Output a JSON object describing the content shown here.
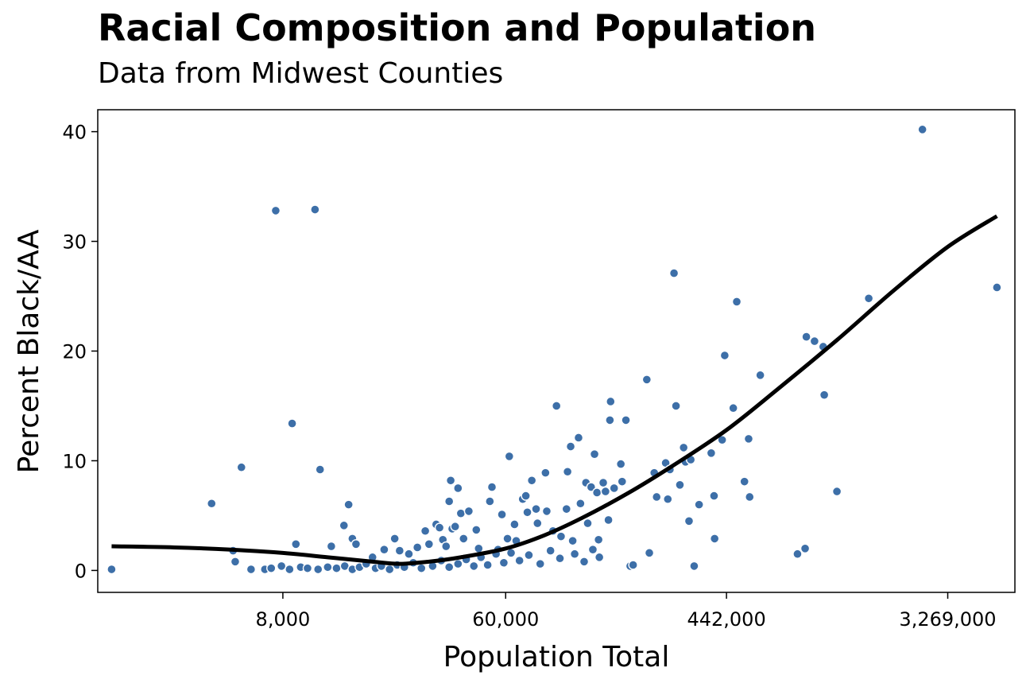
{
  "chart_data": {
    "type": "scatter",
    "title": "Racial Composition and Population",
    "subtitle": "Data from Midwest Counties",
    "xlabel": "Population Total",
    "ylabel": "Percent Black/AA",
    "x_scale": "log",
    "xlim": [
      1500,
      6000000
    ],
    "ylim": [
      -2,
      42
    ],
    "x_ticks": [
      {
        "value": 8000,
        "label": "8,000"
      },
      {
        "value": 60000,
        "label": "60,000"
      },
      {
        "value": 442000,
        "label": "442,000"
      },
      {
        "value": 3269000,
        "label": "3,269,000"
      }
    ],
    "y_ticks": [
      {
        "value": 0,
        "label": "0"
      },
      {
        "value": 10,
        "label": "10"
      },
      {
        "value": 20,
        "label": "20"
      },
      {
        "value": 30,
        "label": "30"
      },
      {
        "value": 40,
        "label": "40"
      }
    ],
    "point_color": "#3D6FA8",
    "line_color": "#000000",
    "points": [
      {
        "x": 1700,
        "y": 0.1
      },
      {
        "x": 4200,
        "y": 6.1
      },
      {
        "x": 5100,
        "y": 1.8
      },
      {
        "x": 5200,
        "y": 0.8
      },
      {
        "x": 5500,
        "y": 9.4
      },
      {
        "x": 7500,
        "y": 32.8
      },
      {
        "x": 8700,
        "y": 13.4
      },
      {
        "x": 9000,
        "y": 2.4
      },
      {
        "x": 10700,
        "y": 32.9
      },
      {
        "x": 11200,
        "y": 9.2
      },
      {
        "x": 12400,
        "y": 2.2
      },
      {
        "x": 13900,
        "y": 4.1
      },
      {
        "x": 14500,
        "y": 6.0
      },
      {
        "x": 15000,
        "y": 2.9
      },
      {
        "x": 15500,
        "y": 2.4
      },
      {
        "x": 18000,
        "y": 1.2
      },
      {
        "x": 20000,
        "y": 1.9
      },
      {
        "x": 22000,
        "y": 2.9
      },
      {
        "x": 23000,
        "y": 1.8
      },
      {
        "x": 25000,
        "y": 1.5
      },
      {
        "x": 27000,
        "y": 2.1
      },
      {
        "x": 29000,
        "y": 3.6
      },
      {
        "x": 30000,
        "y": 2.4
      },
      {
        "x": 32000,
        "y": 4.2
      },
      {
        "x": 33000,
        "y": 3.9
      },
      {
        "x": 34000,
        "y": 2.8
      },
      {
        "x": 35000,
        "y": 2.2
      },
      {
        "x": 36000,
        "y": 6.3
      },
      {
        "x": 36500,
        "y": 8.2
      },
      {
        "x": 37000,
        "y": 3.8
      },
      {
        "x": 38000,
        "y": 4.0
      },
      {
        "x": 39000,
        "y": 7.5
      },
      {
        "x": 40000,
        "y": 5.2
      },
      {
        "x": 41000,
        "y": 2.9
      },
      {
        "x": 43000,
        "y": 5.4
      },
      {
        "x": 46000,
        "y": 3.7
      },
      {
        "x": 47000,
        "y": 2.0
      },
      {
        "x": 52000,
        "y": 6.3
      },
      {
        "x": 53000,
        "y": 7.6
      },
      {
        "x": 56000,
        "y": 1.9
      },
      {
        "x": 58000,
        "y": 5.1
      },
      {
        "x": 61000,
        "y": 2.9
      },
      {
        "x": 62000,
        "y": 10.4
      },
      {
        "x": 65000,
        "y": 4.2
      },
      {
        "x": 66000,
        "y": 2.7
      },
      {
        "x": 70000,
        "y": 6.5
      },
      {
        "x": 72000,
        "y": 6.8
      },
      {
        "x": 73000,
        "y": 5.3
      },
      {
        "x": 76000,
        "y": 8.2
      },
      {
        "x": 79000,
        "y": 5.6
      },
      {
        "x": 80000,
        "y": 4.3
      },
      {
        "x": 86000,
        "y": 8.9
      },
      {
        "x": 87000,
        "y": 5.4
      },
      {
        "x": 92000,
        "y": 3.6
      },
      {
        "x": 95000,
        "y": 15.0
      },
      {
        "x": 99000,
        "y": 3.1
      },
      {
        "x": 104000,
        "y": 5.6
      },
      {
        "x": 105000,
        "y": 9.0
      },
      {
        "x": 108000,
        "y": 11.3
      },
      {
        "x": 110000,
        "y": 2.7
      },
      {
        "x": 116000,
        "y": 12.1
      },
      {
        "x": 118000,
        "y": 6.1
      },
      {
        "x": 124000,
        "y": 8.0
      },
      {
        "x": 126000,
        "y": 4.3
      },
      {
        "x": 130000,
        "y": 7.6
      },
      {
        "x": 134000,
        "y": 10.6
      },
      {
        "x": 137000,
        "y": 7.1
      },
      {
        "x": 139000,
        "y": 2.8
      },
      {
        "x": 145000,
        "y": 8.0
      },
      {
        "x": 148000,
        "y": 7.2
      },
      {
        "x": 152000,
        "y": 4.6
      },
      {
        "x": 154000,
        "y": 13.7
      },
      {
        "x": 155000,
        "y": 15.4
      },
      {
        "x": 160000,
        "y": 7.5
      },
      {
        "x": 170000,
        "y": 9.7
      },
      {
        "x": 172000,
        "y": 8.1
      },
      {
        "x": 178000,
        "y": 13.7
      },
      {
        "x": 185000,
        "y": 0.4
      },
      {
        "x": 190000,
        "y": 0.5
      },
      {
        "x": 215000,
        "y": 17.4
      },
      {
        "x": 220000,
        "y": 1.6
      },
      {
        "x": 230000,
        "y": 8.9
      },
      {
        "x": 235000,
        "y": 6.7
      },
      {
        "x": 255000,
        "y": 9.8
      },
      {
        "x": 260000,
        "y": 6.5
      },
      {
        "x": 265000,
        "y": 9.2
      },
      {
        "x": 275000,
        "y": 27.1
      },
      {
        "x": 280000,
        "y": 15.0
      },
      {
        "x": 290000,
        "y": 7.8
      },
      {
        "x": 300000,
        "y": 11.2
      },
      {
        "x": 305000,
        "y": 9.9
      },
      {
        "x": 315000,
        "y": 4.5
      },
      {
        "x": 320000,
        "y": 10.1
      },
      {
        "x": 330000,
        "y": 0.4
      },
      {
        "x": 345000,
        "y": 6.0
      },
      {
        "x": 385000,
        "y": 10.7
      },
      {
        "x": 395000,
        "y": 6.8
      },
      {
        "x": 397000,
        "y": 2.9
      },
      {
        "x": 425000,
        "y": 11.9
      },
      {
        "x": 435000,
        "y": 19.6
      },
      {
        "x": 470000,
        "y": 14.8
      },
      {
        "x": 485000,
        "y": 24.5
      },
      {
        "x": 520000,
        "y": 8.1
      },
      {
        "x": 540000,
        "y": 12.0
      },
      {
        "x": 545000,
        "y": 6.7
      },
      {
        "x": 600000,
        "y": 17.8
      },
      {
        "x": 840000,
        "y": 1.5
      },
      {
        "x": 900000,
        "y": 2.0
      },
      {
        "x": 910000,
        "y": 21.3
      },
      {
        "x": 980000,
        "y": 20.9
      },
      {
        "x": 1060000,
        "y": 20.4
      },
      {
        "x": 1070000,
        "y": 16.0
      },
      {
        "x": 1200000,
        "y": 7.2
      },
      {
        "x": 1600000,
        "y": 24.8
      },
      {
        "x": 2600000,
        "y": 40.2
      },
      {
        "x": 5100000,
        "y": 25.8
      },
      {
        "x": 6000,
        "y": 0.1
      },
      {
        "x": 6800,
        "y": 0.1
      },
      {
        "x": 7200,
        "y": 0.2
      },
      {
        "x": 7900,
        "y": 0.4
      },
      {
        "x": 8500,
        "y": 0.1
      },
      {
        "x": 9400,
        "y": 0.3
      },
      {
        "x": 10000,
        "y": 0.2
      },
      {
        "x": 11000,
        "y": 0.1
      },
      {
        "x": 12000,
        "y": 0.3
      },
      {
        "x": 13000,
        "y": 0.2
      },
      {
        "x": 14000,
        "y": 0.4
      },
      {
        "x": 15000,
        "y": 0.1
      },
      {
        "x": 16000,
        "y": 0.3
      },
      {
        "x": 17000,
        "y": 0.6
      },
      {
        "x": 18500,
        "y": 0.2
      },
      {
        "x": 19500,
        "y": 0.4
      },
      {
        "x": 21000,
        "y": 0.1
      },
      {
        "x": 22500,
        "y": 0.5
      },
      {
        "x": 24000,
        "y": 0.3
      },
      {
        "x": 26000,
        "y": 0.7
      },
      {
        "x": 28000,
        "y": 0.2
      },
      {
        "x": 31000,
        "y": 0.4
      },
      {
        "x": 33500,
        "y": 0.9
      },
      {
        "x": 36000,
        "y": 0.3
      },
      {
        "x": 39000,
        "y": 0.6
      },
      {
        "x": 42000,
        "y": 1.0
      },
      {
        "x": 45000,
        "y": 0.4
      },
      {
        "x": 48000,
        "y": 1.2
      },
      {
        "x": 51000,
        "y": 0.5
      },
      {
        "x": 55000,
        "y": 1.5
      },
      {
        "x": 59000,
        "y": 0.7
      },
      {
        "x": 63000,
        "y": 1.6
      },
      {
        "x": 68000,
        "y": 0.9
      },
      {
        "x": 74000,
        "y": 1.4
      },
      {
        "x": 82000,
        "y": 0.6
      },
      {
        "x": 90000,
        "y": 1.8
      },
      {
        "x": 98000,
        "y": 1.1
      },
      {
        "x": 112000,
        "y": 1.5
      },
      {
        "x": 122000,
        "y": 0.8
      },
      {
        "x": 132000,
        "y": 1.9
      },
      {
        "x": 140000,
        "y": 1.2
      }
    ],
    "smooth_line": [
      {
        "x": 1700,
        "y": 2.2
      },
      {
        "x": 3000,
        "y": 2.1
      },
      {
        "x": 5000,
        "y": 1.9
      },
      {
        "x": 8000,
        "y": 1.6
      },
      {
        "x": 12000,
        "y": 1.2
      },
      {
        "x": 18000,
        "y": 0.8
      },
      {
        "x": 23000,
        "y": 0.6
      },
      {
        "x": 30000,
        "y": 0.8
      },
      {
        "x": 40000,
        "y": 1.2
      },
      {
        "x": 60000,
        "y": 2.0
      },
      {
        "x": 85000,
        "y": 3.2
      },
      {
        "x": 120000,
        "y": 4.8
      },
      {
        "x": 180000,
        "y": 7.0
      },
      {
        "x": 270000,
        "y": 9.5
      },
      {
        "x": 442000,
        "y": 12.8
      },
      {
        "x": 700000,
        "y": 16.5
      },
      {
        "x": 1200000,
        "y": 21.0
      },
      {
        "x": 2000000,
        "y": 25.5
      },
      {
        "x": 3269000,
        "y": 29.5
      },
      {
        "x": 5100000,
        "y": 32.3
      }
    ]
  }
}
